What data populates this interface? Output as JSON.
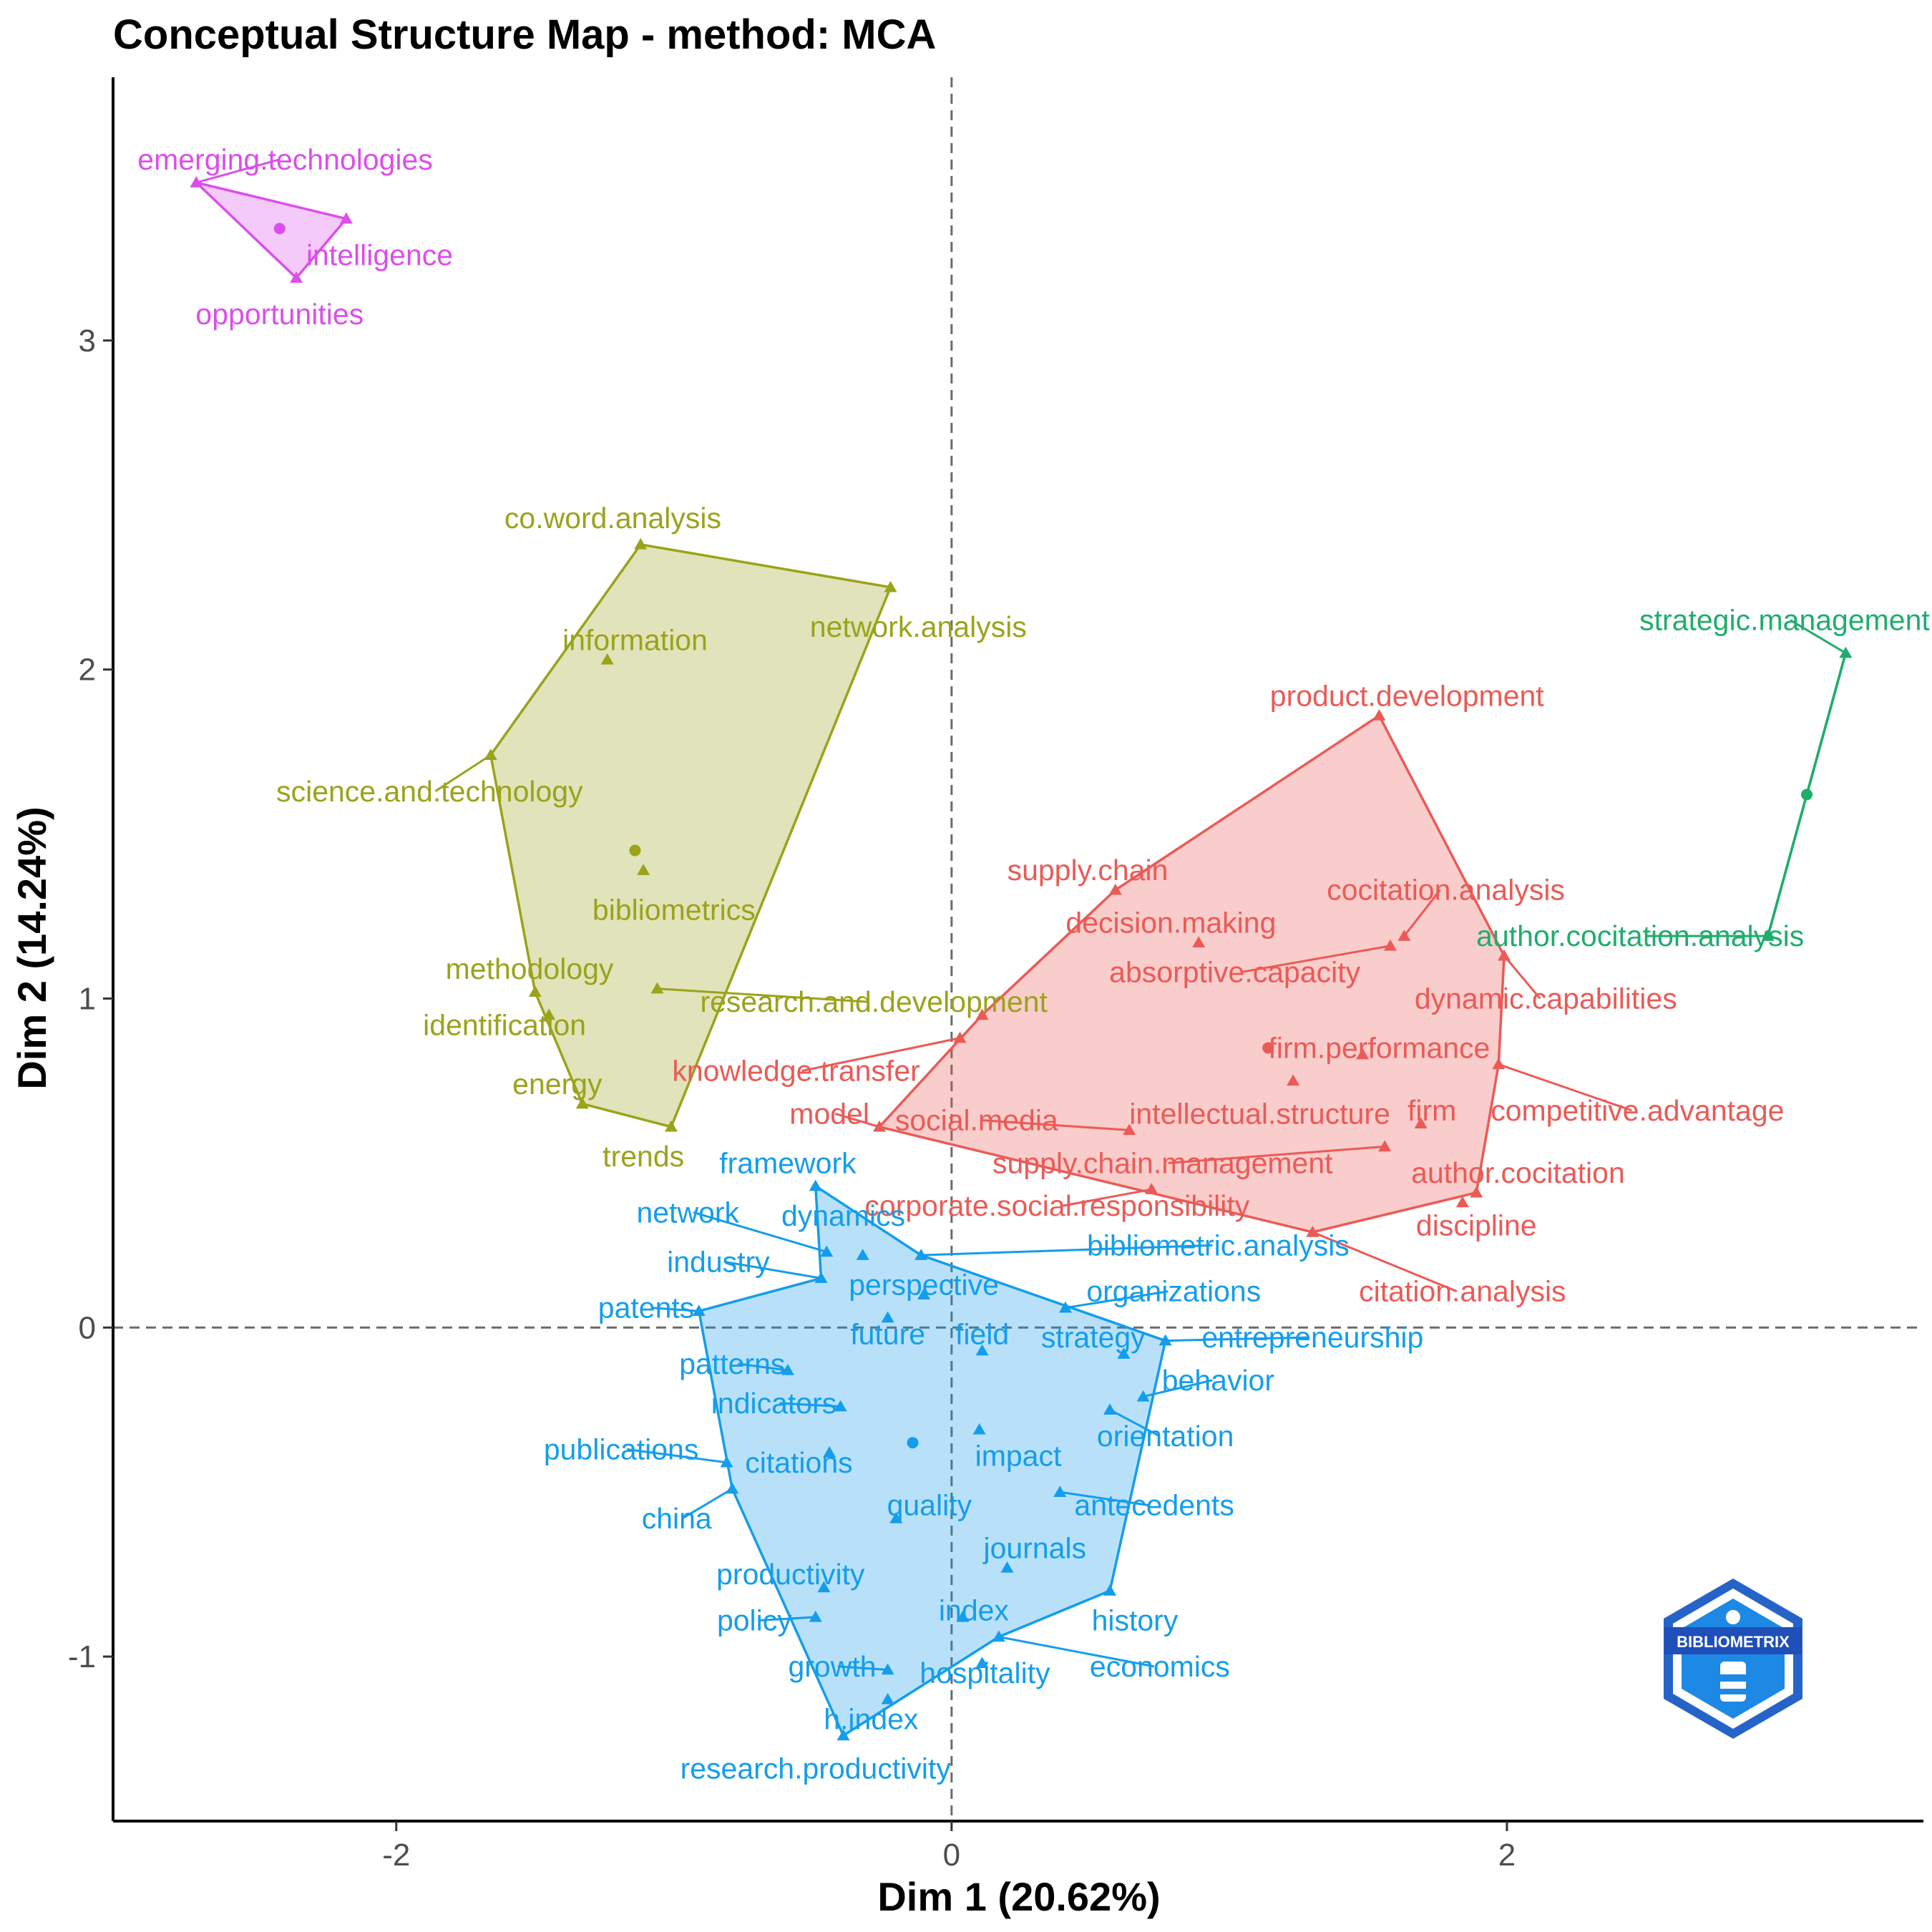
{
  "chart_data": {
    "type": "scatter",
    "title": "Conceptual Structure Map - method: MCA",
    "xlabel": "Dim 1 (20.62%)",
    "ylabel": "Dim 2 (14.24%)",
    "xlim": [
      -3.02,
      3.5
    ],
    "ylim": [
      -1.5,
      3.8
    ],
    "x_ticks": [
      -2,
      0,
      2
    ],
    "y_ticks": [
      -1,
      0,
      1,
      2,
      3
    ],
    "x_tick_labels": [
      "-2",
      "0",
      "2"
    ],
    "y_tick_labels": [
      "-1",
      "0",
      "1",
      "2",
      "3"
    ],
    "reference_lines": {
      "x": 0,
      "y": 0,
      "style": "dashed"
    },
    "grid": false,
    "logo_text": "BIBLIOMETRIX",
    "clusters": [
      {
        "name": "cluster-magenta",
        "color": "#DC4EEB",
        "centroid": [
          -2.42,
          3.34
        ],
        "hull": [
          "emerging.technologies",
          "intelligence",
          "opportunities"
        ],
        "points": [
          {
            "label": "emerging.technologies",
            "x": -2.72,
            "y": 3.48,
            "lx": -2.4,
            "ly": 3.55
          },
          {
            "label": "intelligence",
            "x": -2.18,
            "y": 3.37,
            "lx": -2.06,
            "ly": 3.26
          },
          {
            "label": "opportunities",
            "x": -2.36,
            "y": 3.19,
            "lx": -2.42,
            "ly": 3.08
          }
        ]
      },
      {
        "name": "cluster-olive",
        "color": "#9AA31A",
        "centroid": [
          -1.14,
          1.45
        ],
        "hull": [
          "co.word.analysis",
          "network.analysis",
          "trends",
          "energy",
          "methodology",
          "science.and.technology"
        ],
        "points": [
          {
            "label": "co.word.analysis",
            "x": -1.12,
            "y": 2.38,
            "lx": -1.22,
            "ly": 2.46
          },
          {
            "label": "network.analysis",
            "x": -0.22,
            "y": 2.25,
            "lx": -0.12,
            "ly": 2.13
          },
          {
            "label": "information",
            "x": -1.24,
            "y": 2.03,
            "lx": -1.14,
            "ly": 2.09
          },
          {
            "label": "science.and.technology",
            "x": -1.66,
            "y": 1.74,
            "lx": -1.88,
            "ly": 1.63
          },
          {
            "label": "bibliometrics",
            "x": -1.11,
            "y": 1.39,
            "lx": -1.0,
            "ly": 1.27
          },
          {
            "label": "methodology",
            "x": -1.5,
            "y": 1.02,
            "lx": -1.52,
            "ly": 1.09
          },
          {
            "label": "research.and.development",
            "x": -1.06,
            "y": 1.03,
            "lx": -0.28,
            "ly": 0.99
          },
          {
            "label": "identification",
            "x": -1.45,
            "y": 0.95,
            "lx": -1.61,
            "ly": 0.92
          },
          {
            "label": "energy",
            "x": -1.33,
            "y": 0.68,
            "lx": -1.42,
            "ly": 0.74
          },
          {
            "label": "trends",
            "x": -1.01,
            "y": 0.61,
            "lx": -1.11,
            "ly": 0.52
          }
        ]
      },
      {
        "name": "cluster-red",
        "color": "#EB5A56",
        "centroid": [
          1.14,
          0.85
        ],
        "hull": [
          "product.development",
          "dynamic.capabilities",
          "competitive.advantage",
          "author.cocitation",
          "citation.analysis",
          "model",
          "research.and.development",
          "supply.chain"
        ],
        "points": [
          {
            "label": "product.development",
            "x": 1.54,
            "y": 1.86,
            "lx": 1.64,
            "ly": 1.92
          },
          {
            "label": "supply.chain",
            "x": 0.59,
            "y": 1.33,
            "lx": 0.49,
            "ly": 1.39
          },
          {
            "label": "cocitation.analysis",
            "x": 1.63,
            "y": 1.19,
            "lx": 1.78,
            "ly": 1.33
          },
          {
            "label": "decision.making",
            "x": 0.89,
            "y": 1.17,
            "lx": 0.79,
            "ly": 1.23
          },
          {
            "label": "absorptive.capacity",
            "x": 1.58,
            "y": 1.16,
            "lx": 1.02,
            "ly": 1.08
          },
          {
            "label": "dynamic.capabilities",
            "x": 1.99,
            "y": 1.13,
            "lx": 2.14,
            "ly": 1.0
          },
          {
            "label": "research.and.development",
            "x": 0.11,
            "y": 0.95,
            "lx": 0.11,
            "ly": 0.95
          },
          {
            "label": "firm.performance",
            "x": 1.48,
            "y": 0.83,
            "lx": 1.54,
            "ly": 0.85
          },
          {
            "label": "knowledge.transfer",
            "x": 0.03,
            "y": 0.88,
            "lx": -0.56,
            "ly": 0.78
          },
          {
            "label": "competitive.advantage",
            "x": 1.97,
            "y": 0.8,
            "lx": 2.47,
            "ly": 0.66
          },
          {
            "label": "intellectual.structure",
            "x": 1.23,
            "y": 0.75,
            "lx": 1.11,
            "ly": 0.65
          },
          {
            "label": "firm",
            "x": 1.69,
            "y": 0.62,
            "lx": 1.73,
            "ly": 0.66
          },
          {
            "label": "model",
            "x": -0.26,
            "y": 0.61,
            "lx": -0.44,
            "ly": 0.65
          },
          {
            "label": "social.media",
            "x": 0.64,
            "y": 0.6,
            "lx": 0.09,
            "ly": 0.63
          },
          {
            "label": "supply.chain.management",
            "x": 1.56,
            "y": 0.55,
            "lx": 0.76,
            "ly": 0.5
          },
          {
            "label": "author.cocitation",
            "x": 1.89,
            "y": 0.41,
            "lx": 2.04,
            "ly": 0.47
          },
          {
            "label": "corporate.social.responsibility",
            "x": 0.72,
            "y": 0.42,
            "lx": 0.38,
            "ly": 0.37
          },
          {
            "label": "discipline",
            "x": 1.84,
            "y": 0.38,
            "lx": 1.89,
            "ly": 0.31
          },
          {
            "label": "citation.analysis",
            "x": 1.3,
            "y": 0.29,
            "lx": 1.84,
            "ly": 0.11
          }
        ]
      },
      {
        "name": "cluster-green",
        "color": "#1FAD6C",
        "centroid": [
          3.08,
          1.62
        ],
        "hull": [
          "strategic.management",
          "author.cocitation.analysis"
        ],
        "points": [
          {
            "label": "strategic.management",
            "x": 3.22,
            "y": 2.05,
            "lx": 3.0,
            "ly": 2.15
          },
          {
            "label": "author.cocitation.analysis",
            "x": 2.94,
            "y": 1.19,
            "lx": 2.48,
            "ly": 1.19
          }
        ]
      },
      {
        "name": "cluster-blue",
        "color": "#149DEB",
        "centroid": [
          -0.14,
          -0.35
        ],
        "hull": [
          "framework",
          "bibliometric.analysis",
          "entrepreneurship",
          "history",
          "economics",
          "research.productivity",
          "china",
          "patents",
          "industry"
        ],
        "points": [
          {
            "label": "framework",
            "x": -0.49,
            "y": 0.43,
            "lx": -0.59,
            "ly": 0.5
          },
          {
            "label": "network",
            "x": -0.45,
            "y": 0.23,
            "lx": -0.95,
            "ly": 0.35
          },
          {
            "label": "dynamics",
            "x": -0.32,
            "y": 0.22,
            "lx": -0.39,
            "ly": 0.34
          },
          {
            "label": "bibliometric.analysis",
            "x": -0.11,
            "y": 0.22,
            "lx": 0.96,
            "ly": 0.25
          },
          {
            "label": "industry",
            "x": -0.47,
            "y": 0.15,
            "lx": -0.84,
            "ly": 0.2
          },
          {
            "label": "perspective",
            "x": -0.1,
            "y": 0.1,
            "lx": -0.1,
            "ly": 0.13
          },
          {
            "label": "organizations",
            "x": 0.41,
            "y": 0.06,
            "lx": 0.8,
            "ly": 0.11
          },
          {
            "label": "patents",
            "x": -0.91,
            "y": 0.05,
            "lx": -1.1,
            "ly": 0.06
          },
          {
            "label": "future",
            "x": -0.23,
            "y": 0.03,
            "lx": -0.23,
            "ly": -0.02
          },
          {
            "label": "field",
            "x": 0.11,
            "y": -0.07,
            "lx": 0.11,
            "ly": -0.02
          },
          {
            "label": "strategy",
            "x": 0.62,
            "y": -0.08,
            "lx": 0.51,
            "ly": -0.03
          },
          {
            "label": "entrepreneurship",
            "x": 0.77,
            "y": -0.04,
            "lx": 1.3,
            "ly": -0.03
          },
          {
            "label": "patterns",
            "x": -0.59,
            "y": -0.13,
            "lx": -0.79,
            "ly": -0.11
          },
          {
            "label": "behavior",
            "x": 0.69,
            "y": -0.21,
            "lx": 0.96,
            "ly": -0.16
          },
          {
            "label": "indicators",
            "x": -0.4,
            "y": -0.24,
            "lx": -0.64,
            "ly": -0.23
          },
          {
            "label": "orientation",
            "x": 0.57,
            "y": -0.25,
            "lx": 0.77,
            "ly": -0.33
          },
          {
            "label": "publications",
            "x": -0.81,
            "y": -0.41,
            "lx": -1.19,
            "ly": -0.37
          },
          {
            "label": "citations",
            "x": -0.44,
            "y": -0.38,
            "lx": -0.55,
            "ly": -0.41
          },
          {
            "label": "impact",
            "x": 0.1,
            "y": -0.31,
            "lx": 0.24,
            "ly": -0.39
          },
          {
            "label": "antecedents",
            "x": 0.39,
            "y": -0.5,
            "lx": 0.73,
            "ly": -0.54
          },
          {
            "label": "quality",
            "x": -0.2,
            "y": -0.58,
            "lx": -0.08,
            "ly": -0.54
          },
          {
            "label": "china",
            "x": -0.79,
            "y": -0.49,
            "lx": -0.99,
            "ly": -0.58
          },
          {
            "label": "journals",
            "x": 0.2,
            "y": -0.73,
            "lx": 0.3,
            "ly": -0.67
          },
          {
            "label": "productivity",
            "x": -0.46,
            "y": -0.79,
            "lx": -0.58,
            "ly": -0.75
          },
          {
            "label": "history",
            "x": 0.57,
            "y": -0.8,
            "lx": 0.66,
            "ly": -0.89
          },
          {
            "label": "index",
            "x": 0.04,
            "y": -0.88,
            "lx": 0.08,
            "ly": -0.86
          },
          {
            "label": "policy",
            "x": -0.49,
            "y": -0.88,
            "lx": -0.71,
            "ly": -0.89
          },
          {
            "label": "economics",
            "x": 0.17,
            "y": -0.94,
            "lx": 0.75,
            "ly": -1.03
          },
          {
            "label": "growth",
            "x": -0.23,
            "y": -1.04,
            "lx": -0.43,
            "ly": -1.03
          },
          {
            "label": "hospitality",
            "x": 0.11,
            "y": -1.02,
            "lx": 0.12,
            "ly": -1.05
          },
          {
            "label": "h.index",
            "x": -0.23,
            "y": -1.13,
            "lx": -0.29,
            "ly": -1.19
          },
          {
            "label": "research.productivity",
            "x": -0.39,
            "y": -1.24,
            "lx": -0.49,
            "ly": -1.34
          }
        ]
      }
    ]
  }
}
